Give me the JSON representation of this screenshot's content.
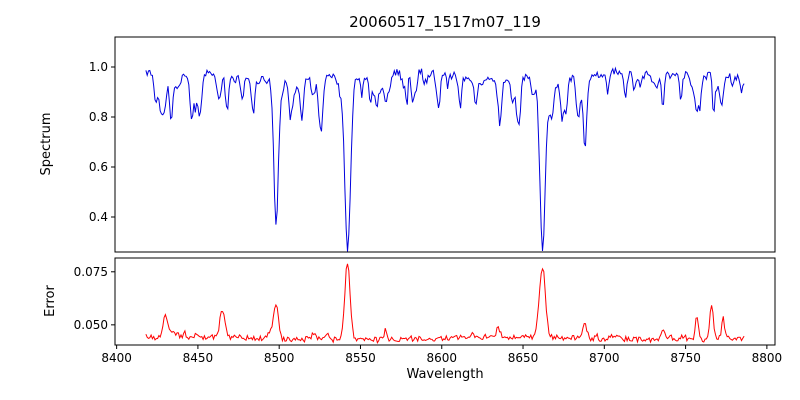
{
  "figure": {
    "background": "#ffffff"
  },
  "chart_data": {
    "type": "line",
    "title": "20060517_1517m07_119",
    "xlabel": "Wavelength",
    "xlim": [
      8399,
      8805
    ],
    "x_range": [
      8418,
      8786
    ],
    "xticks": [
      8400,
      8450,
      8500,
      8550,
      8600,
      8650,
      8700,
      8750,
      8800
    ],
    "xtick_labels": [
      "8400",
      "8450",
      "8500",
      "8550",
      "8600",
      "8650",
      "8700",
      "8750",
      "8800"
    ],
    "grid": false,
    "legend": "none",
    "noise_seed": 20060517,
    "panels": [
      {
        "name": "spectrum",
        "ylabel": "Spectrum",
        "color": "#0000dd",
        "ylim": [
          0.26,
          1.12
        ],
        "yticks": {
          "values": [
            0.4,
            0.6,
            0.8,
            1.0
          ],
          "labels": [
            "0.4",
            "0.6",
            "0.8",
            "1.0"
          ]
        },
        "baseline": 0.965,
        "noise_amplitude": 0.03,
        "clip_max": 1.06,
        "micro_line_count": 90,
        "lines": [
          {
            "center": 8498.0,
            "depth": 0.5,
            "width": 1.3
          },
          {
            "center": 8542.1,
            "depth": 0.68,
            "width": 1.8
          },
          {
            "center": 8662.1,
            "depth": 0.65,
            "width": 1.7
          },
          {
            "center": 8424,
            "depth": 0.1,
            "width": 0.9
          },
          {
            "center": 8434,
            "depth": 0.13,
            "width": 0.9
          },
          {
            "center": 8446,
            "depth": 0.08,
            "width": 0.8
          },
          {
            "center": 8468,
            "depth": 0.15,
            "width": 1.0
          },
          {
            "center": 8484,
            "depth": 0.1,
            "width": 0.9
          },
          {
            "center": 8514,
            "depth": 0.17,
            "width": 1.0
          },
          {
            "center": 8526,
            "depth": 0.1,
            "width": 0.9
          },
          {
            "center": 8556,
            "depth": 0.08,
            "width": 0.9
          },
          {
            "center": 8582,
            "depth": 0.1,
            "width": 0.9
          },
          {
            "center": 8598,
            "depth": 0.12,
            "width": 1.0
          },
          {
            "center": 8611,
            "depth": 0.09,
            "width": 0.8
          },
          {
            "center": 8621,
            "depth": 0.11,
            "width": 0.9
          },
          {
            "center": 8648,
            "depth": 0.09,
            "width": 0.8
          },
          {
            "center": 8674,
            "depth": 0.16,
            "width": 1.0
          },
          {
            "center": 8688,
            "depth": 0.28,
            "width": 1.1
          },
          {
            "center": 8702,
            "depth": 0.08,
            "width": 0.8
          },
          {
            "center": 8713,
            "depth": 0.1,
            "width": 0.9
          },
          {
            "center": 8736,
            "depth": 0.12,
            "width": 0.9
          },
          {
            "center": 8747,
            "depth": 0.09,
            "width": 0.8
          },
          {
            "center": 8757,
            "depth": 0.11,
            "width": 0.9
          },
          {
            "center": 8772,
            "depth": 0.12,
            "width": 0.9
          }
        ]
      },
      {
        "name": "error",
        "ylabel": "Error",
        "color": "#ff0000",
        "ylim": [
          0.0405,
          0.0815
        ],
        "yticks": {
          "values": [
            0.05,
            0.075
          ],
          "labels": [
            "0.050",
            "0.075"
          ]
        },
        "baseline": 0.0435,
        "noise_amplitude": 0.0025,
        "micro_peak_count": 45,
        "peaks": [
          {
            "center": 8430,
            "height": 0.011,
            "width": 1.5
          },
          {
            "center": 8465,
            "height": 0.012,
            "width": 1.4
          },
          {
            "center": 8498,
            "height": 0.017,
            "width": 1.4
          },
          {
            "center": 8542,
            "height": 0.037,
            "width": 1.6
          },
          {
            "center": 8662,
            "height": 0.033,
            "width": 1.8
          },
          {
            "center": 8688,
            "height": 0.007,
            "width": 1.2
          },
          {
            "center": 8736,
            "height": 0.005,
            "width": 1.0
          },
          {
            "center": 8757,
            "height": 0.011,
            "width": 1.1
          },
          {
            "center": 8766,
            "height": 0.017,
            "width": 1.0
          },
          {
            "center": 8773,
            "height": 0.008,
            "width": 1.0
          }
        ]
      }
    ]
  }
}
